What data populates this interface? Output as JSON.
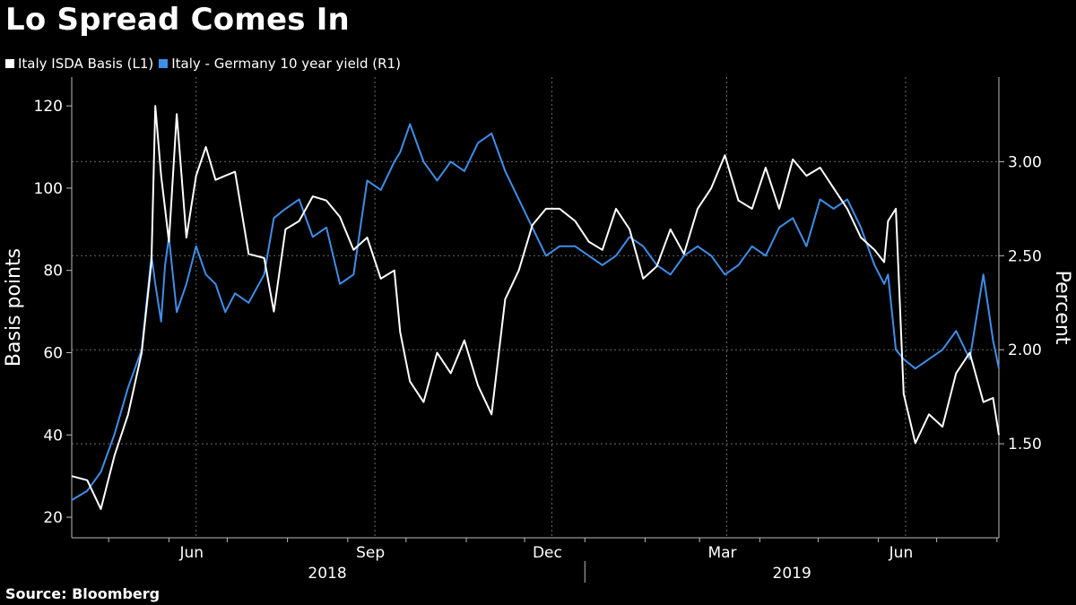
{
  "header": {
    "title": "Lo Spread Comes In"
  },
  "footer": {
    "source": "Source: Bloomberg"
  },
  "colors": {
    "background": "#000000",
    "white_series": "#ffffff",
    "blue_series": "#3f8ee8",
    "grid": "#6a6a6a"
  },
  "chart_data": {
    "type": "line",
    "title": "Lo Spread Comes In",
    "legend_position": "top-left",
    "grid": true,
    "x_ticks": [
      "Jun",
      "Sep",
      "Dec",
      "Mar",
      "Jun"
    ],
    "x_years": [
      "2018",
      "2019"
    ],
    "x_range": [
      "2018-04-12",
      "2019-08-02"
    ],
    "left_axis": {
      "label": "Basis points",
      "ticks": [
        20,
        40,
        60,
        80,
        100,
        120
      ],
      "range": [
        15,
        127
      ]
    },
    "right_axis": {
      "label": "Percent",
      "ticks": [
        "1.50",
        "2.00",
        "2.50",
        "3.00"
      ],
      "range": [
        1.0,
        3.45
      ]
    },
    "series": [
      {
        "name": "Italy ISDA Basis (L1)",
        "axis": "left",
        "color": "#ffffff",
        "x": [
          "2018-04-12",
          "2018-04-20",
          "2018-04-27",
          "2018-05-04",
          "2018-05-11",
          "2018-05-18",
          "2018-05-23",
          "2018-05-25",
          "2018-05-28",
          "2018-05-30",
          "2018-06-01",
          "2018-06-05",
          "2018-06-10",
          "2018-06-15",
          "2018-06-20",
          "2018-06-25",
          "2018-06-30",
          "2018-07-05",
          "2018-07-12",
          "2018-07-20",
          "2018-07-25",
          "2018-07-31",
          "2018-08-07",
          "2018-08-14",
          "2018-08-21",
          "2018-08-28",
          "2018-09-04",
          "2018-09-11",
          "2018-09-18",
          "2018-09-25",
          "2018-09-28",
          "2018-10-03",
          "2018-10-10",
          "2018-10-17",
          "2018-10-24",
          "2018-10-31",
          "2018-11-07",
          "2018-11-14",
          "2018-11-21",
          "2018-11-28",
          "2018-12-05",
          "2018-12-12",
          "2018-12-19",
          "2018-12-27",
          "2019-01-03",
          "2019-01-10",
          "2019-01-17",
          "2019-01-24",
          "2019-01-31",
          "2019-02-07",
          "2019-02-14",
          "2019-02-21",
          "2019-02-28",
          "2019-03-07",
          "2019-03-14",
          "2019-03-21",
          "2019-03-28",
          "2019-04-04",
          "2019-04-11",
          "2019-04-18",
          "2019-04-25",
          "2019-05-02",
          "2019-05-09",
          "2019-05-16",
          "2019-05-23",
          "2019-05-30",
          "2019-06-04",
          "2019-06-06",
          "2019-06-10",
          "2019-06-14",
          "2019-06-20",
          "2019-06-27",
          "2019-07-04",
          "2019-07-11",
          "2019-07-18",
          "2019-07-25",
          "2019-07-30",
          "2019-08-02"
        ],
        "values": [
          30,
          29,
          22,
          35,
          45,
          60,
          82,
          120,
          103,
          95,
          87,
          118,
          88,
          103,
          110,
          102,
          103,
          104,
          84,
          83,
          70,
          90,
          92,
          98,
          97,
          93,
          85,
          88,
          78,
          80,
          65,
          53,
          48,
          60,
          55,
          63,
          52,
          45,
          73,
          80,
          91,
          95,
          95,
          92,
          87,
          85,
          95,
          90,
          78,
          81,
          90,
          84,
          95,
          100,
          108,
          97,
          95,
          105,
          95,
          107,
          103,
          105,
          100,
          95,
          88,
          85,
          82,
          92,
          95,
          50,
          38,
          45,
          42,
          55,
          60,
          48,
          49,
          40
        ]
      },
      {
        "name": "Italy - Germany 10 year yield (R1)",
        "axis": "right",
        "color": "#3f8ee8",
        "x": [
          "2018-04-12",
          "2018-04-20",
          "2018-04-27",
          "2018-05-04",
          "2018-05-11",
          "2018-05-18",
          "2018-05-23",
          "2018-05-25",
          "2018-05-28",
          "2018-05-30",
          "2018-06-01",
          "2018-06-05",
          "2018-06-10",
          "2018-06-15",
          "2018-06-20",
          "2018-06-25",
          "2018-06-30",
          "2018-07-05",
          "2018-07-12",
          "2018-07-20",
          "2018-07-25",
          "2018-07-31",
          "2018-08-07",
          "2018-08-14",
          "2018-08-21",
          "2018-08-28",
          "2018-09-04",
          "2018-09-11",
          "2018-09-18",
          "2018-09-25",
          "2018-09-28",
          "2018-10-03",
          "2018-10-10",
          "2018-10-17",
          "2018-10-24",
          "2018-10-31",
          "2018-11-07",
          "2018-11-14",
          "2018-11-21",
          "2018-11-28",
          "2018-12-05",
          "2018-12-12",
          "2018-12-19",
          "2018-12-27",
          "2019-01-03",
          "2019-01-10",
          "2019-01-17",
          "2019-01-24",
          "2019-01-31",
          "2019-02-07",
          "2019-02-14",
          "2019-02-21",
          "2019-02-28",
          "2019-03-07",
          "2019-03-14",
          "2019-03-21",
          "2019-03-28",
          "2019-04-04",
          "2019-04-11",
          "2019-04-18",
          "2019-04-25",
          "2019-05-02",
          "2019-05-09",
          "2019-05-16",
          "2019-05-23",
          "2019-05-30",
          "2019-06-04",
          "2019-06-06",
          "2019-06-10",
          "2019-06-14",
          "2019-06-20",
          "2019-06-27",
          "2019-07-04",
          "2019-07-11",
          "2019-07-18",
          "2019-07-25",
          "2019-07-30",
          "2019-08-02"
        ],
        "values": [
          1.2,
          1.25,
          1.35,
          1.55,
          1.8,
          2.0,
          2.5,
          2.35,
          2.15,
          2.45,
          2.6,
          2.2,
          2.35,
          2.55,
          2.4,
          2.35,
          2.2,
          2.3,
          2.25,
          2.4,
          2.7,
          2.75,
          2.8,
          2.6,
          2.65,
          2.35,
          2.4,
          2.9,
          2.85,
          3.0,
          3.05,
          3.2,
          3.0,
          2.9,
          3.0,
          2.95,
          3.1,
          3.15,
          2.95,
          2.8,
          2.65,
          2.5,
          2.55,
          2.55,
          2.5,
          2.45,
          2.5,
          2.6,
          2.55,
          2.45,
          2.4,
          2.5,
          2.55,
          2.5,
          2.4,
          2.45,
          2.55,
          2.5,
          2.65,
          2.7,
          2.55,
          2.8,
          2.75,
          2.8,
          2.65,
          2.45,
          2.35,
          2.4,
          2.0,
          1.95,
          1.9,
          1.95,
          2.0,
          2.1,
          1.95,
          2.4,
          2.05,
          1.9
        ]
      }
    ]
  }
}
